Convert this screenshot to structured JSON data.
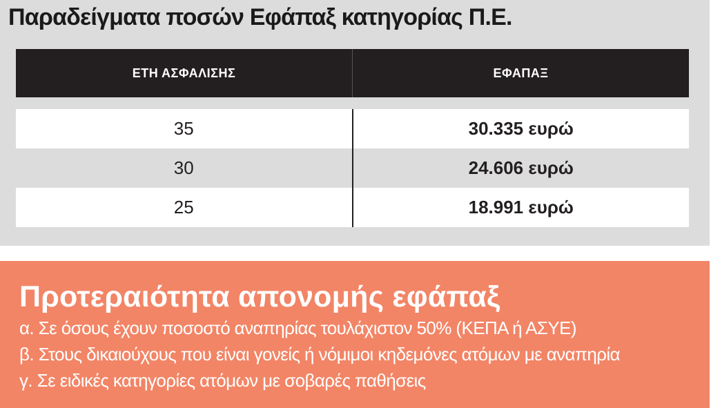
{
  "title": "Παραδείγματα ποσών Εφάπαξ κατηγορίας Π.Ε.",
  "table": {
    "headers": [
      "ΕΤΗ ΑΣΦΑΛΙΣΗΣ",
      "ΕΦΑΠΑΞ"
    ],
    "rows": [
      {
        "years": "35",
        "amount": "30.335 ευρώ"
      },
      {
        "years": "30",
        "amount": "24.606 ευρώ"
      },
      {
        "years": "25",
        "amount": "18.991 ευρώ"
      }
    ]
  },
  "priority": {
    "heading": "Προτεραιότητα απονομής εφάπαξ",
    "items": [
      "α. Σε όσους έχουν ποσοστό αναπηρίας τουλάχιστον 50% (ΚΕΠΑ ή ΑΣΥΕ)",
      "β. Στους δικαιούχους που είναι γονείς ή νόμιμοι κηδεμόνες ατόμων με αναπηρία",
      "γ. Σε ειδικές κατηγορίες ατόμων με σοβαρές παθήσεις"
    ]
  },
  "colors": {
    "header_bg": "#231f20",
    "panel_grey": "#dcdcdc",
    "accent_salmon": "#f28566"
  }
}
